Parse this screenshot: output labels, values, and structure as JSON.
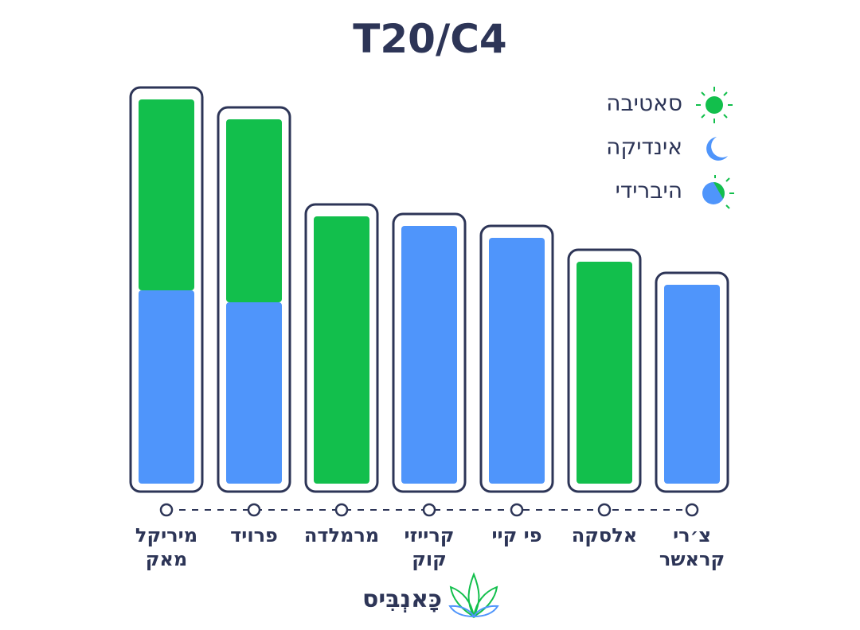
{
  "chart_data": {
    "type": "stacked_bar",
    "title": "T20/C4",
    "categories": [
      "מיריקל מאק",
      "פרויד",
      "מרמלדה",
      "קרייזי קוק",
      "פי קיי",
      "אלסקה",
      "צ׳רי קראשר"
    ],
    "series": [
      {
        "name": "סאטיבה",
        "color": "#12bf4c",
        "values": [
          240,
          230,
          336,
          null,
          null,
          279,
          null
        ]
      },
      {
        "name": "אינדיקה",
        "color": "#4f95fb",
        "values": [
          243,
          228,
          null,
          324,
          309,
          null,
          250
        ]
      }
    ],
    "hybrid_legend": "היברידי",
    "brand": "כָּאנְבִּיס"
  }
}
